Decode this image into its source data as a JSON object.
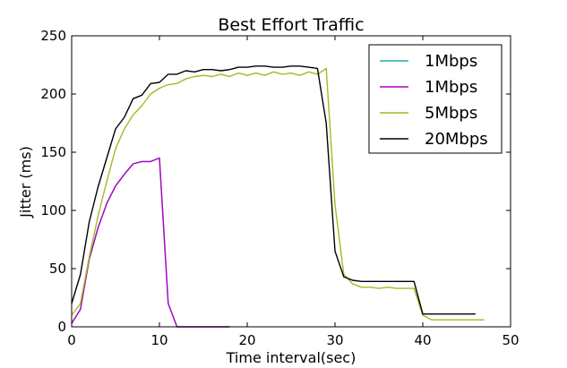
{
  "chart_data": {
    "type": "line",
    "title": "Best Effort Traffic",
    "xlabel": "Time interval(sec)",
    "ylabel": "Jitter (ms)",
    "xlim": [
      0,
      50
    ],
    "ylim": [
      0,
      250
    ],
    "xticks": [
      0,
      10,
      20,
      30,
      40,
      50
    ],
    "yticks": [
      0,
      50,
      100,
      150,
      200,
      250
    ],
    "grid": false,
    "legend_position": "top-right",
    "series": [
      {
        "name": "1Mbps",
        "color": "#20b2aa",
        "x": [
          0,
          1,
          2,
          3,
          4,
          5,
          6,
          7,
          8,
          9,
          10,
          11,
          12,
          13,
          14,
          15,
          16,
          17,
          18
        ],
        "values": [
          3,
          15,
          58,
          85,
          106,
          121,
          131,
          140,
          142,
          142,
          145,
          20,
          0,
          0,
          0,
          0,
          0,
          0,
          0
        ]
      },
      {
        "name": "1Mbps",
        "color": "#b000c0",
        "x": [
          0,
          1,
          2,
          3,
          4,
          5,
          6,
          7,
          8,
          9,
          10,
          11,
          12,
          13,
          14,
          15,
          16,
          17,
          18
        ],
        "values": [
          3,
          15,
          58,
          85,
          106,
          121,
          131,
          140,
          142,
          142,
          145,
          20,
          0,
          0,
          0,
          0,
          0,
          0,
          0
        ]
      },
      {
        "name": "5Mbps",
        "color": "#a8b820",
        "x": [
          0,
          1,
          2,
          3,
          4,
          5,
          6,
          7,
          8,
          9,
          10,
          11,
          12,
          13,
          14,
          15,
          16,
          17,
          18,
          19,
          20,
          21,
          22,
          23,
          24,
          25,
          26,
          27,
          28,
          29,
          30,
          31,
          32,
          33,
          34,
          35,
          36,
          37,
          38,
          39,
          40,
          41,
          42,
          43,
          44,
          45,
          46,
          47
        ],
        "values": [
          10,
          20,
          60,
          95,
          125,
          153,
          170,
          182,
          190,
          200,
          205,
          208,
          209,
          213,
          215,
          216,
          215,
          217,
          215,
          218,
          216,
          218,
          216,
          219,
          217,
          218,
          216,
          219,
          217,
          222,
          105,
          45,
          37,
          34,
          34,
          33,
          34,
          33,
          33,
          33,
          10,
          6,
          6,
          6,
          6,
          6,
          6,
          6
        ]
      },
      {
        "name": "20Mbps",
        "color": "#000000",
        "x": [
          0,
          1,
          2,
          3,
          4,
          5,
          6,
          7,
          8,
          9,
          10,
          11,
          12,
          13,
          14,
          15,
          16,
          17,
          18,
          19,
          20,
          21,
          22,
          23,
          24,
          25,
          26,
          27,
          28,
          29,
          30,
          31,
          32,
          33,
          34,
          35,
          36,
          37,
          38,
          39,
          40,
          41,
          42,
          43,
          44,
          45,
          46
        ],
        "values": [
          20,
          45,
          90,
          120,
          145,
          170,
          180,
          196,
          199,
          209,
          210,
          217,
          217,
          220,
          219,
          221,
          221,
          220,
          221,
          223,
          223,
          224,
          224,
          223,
          223,
          224,
          224,
          223,
          222,
          175,
          65,
          43,
          40,
          39,
          39,
          39,
          39,
          39,
          39,
          39,
          11,
          11,
          11,
          11,
          11,
          11,
          11
        ]
      }
    ]
  }
}
